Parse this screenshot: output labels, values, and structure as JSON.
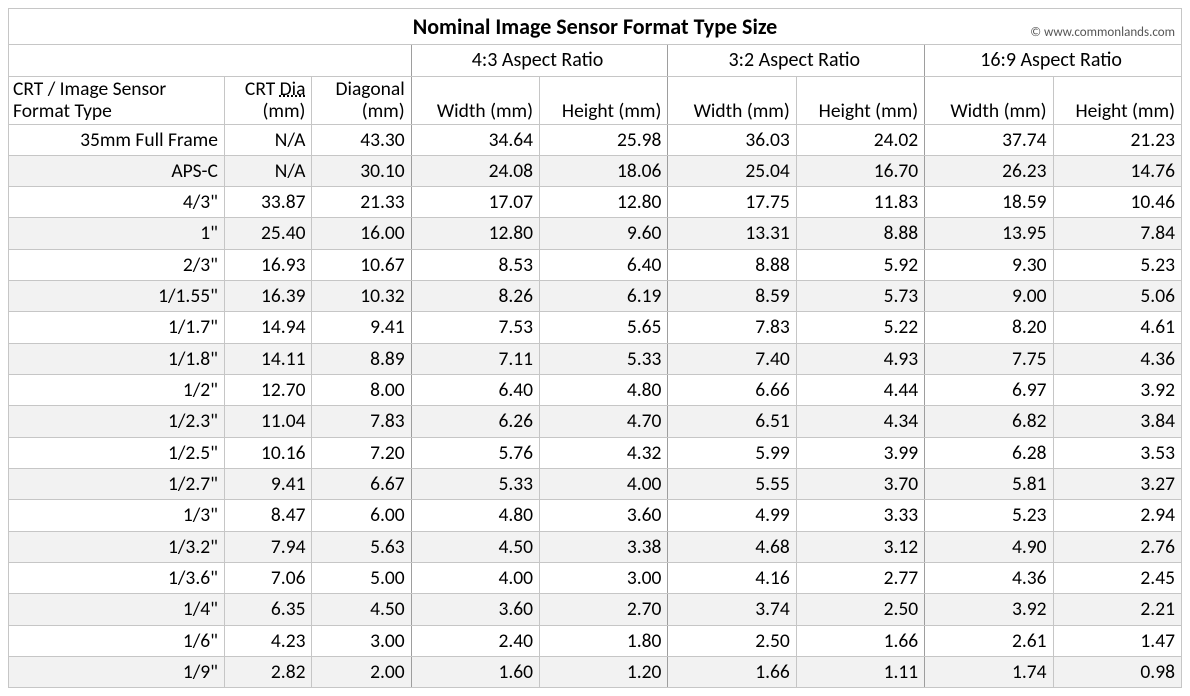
{
  "title": "Nominal Image Sensor Format Type Size",
  "credit": "© www.commonlands.com",
  "group_headers": {
    "r43": "4:3 Aspect Ratio",
    "r32": "3:2 Aspect Ratio",
    "r169": "16:9 Aspect Ratio"
  },
  "col_headers": {
    "type_l1": "CRT / Image Sensor",
    "type_l2": "Format Type",
    "crt_l1_a": "CRT ",
    "crt_l1_b": "Dia",
    "crt_l2": "(mm)",
    "diag_l1": "Diagonal",
    "diag_l2": "(mm)",
    "w": "Width (mm)",
    "h": "Height (mm)"
  },
  "rows": [
    {
      "type": "35mm Full Frame",
      "crt": "N/A",
      "diag": "43.30",
      "w43": "34.64",
      "h43": "25.98",
      "w32": "36.03",
      "h32": "24.02",
      "w169": "37.74",
      "h169": "21.23"
    },
    {
      "type": "APS-C",
      "crt": "N/A",
      "diag": "30.10",
      "w43": "24.08",
      "h43": "18.06",
      "w32": "25.04",
      "h32": "16.70",
      "w169": "26.23",
      "h169": "14.76"
    },
    {
      "type": "4/3\"",
      "crt": "33.87",
      "diag": "21.33",
      "w43": "17.07",
      "h43": "12.80",
      "w32": "17.75",
      "h32": "11.83",
      "w169": "18.59",
      "h169": "10.46"
    },
    {
      "type": "1\"",
      "crt": "25.40",
      "diag": "16.00",
      "w43": "12.80",
      "h43": "9.60",
      "w32": "13.31",
      "h32": "8.88",
      "w169": "13.95",
      "h169": "7.84"
    },
    {
      "type": "2/3\"",
      "crt": "16.93",
      "diag": "10.67",
      "w43": "8.53",
      "h43": "6.40",
      "w32": "8.88",
      "h32": "5.92",
      "w169": "9.30",
      "h169": "5.23"
    },
    {
      "type": "1/1.55\"",
      "crt": "16.39",
      "diag": "10.32",
      "w43": "8.26",
      "h43": "6.19",
      "w32": "8.59",
      "h32": "5.73",
      "w169": "9.00",
      "h169": "5.06"
    },
    {
      "type": "1/1.7\"",
      "crt": "14.94",
      "diag": "9.41",
      "w43": "7.53",
      "h43": "5.65",
      "w32": "7.83",
      "h32": "5.22",
      "w169": "8.20",
      "h169": "4.61"
    },
    {
      "type": "1/1.8\"",
      "crt": "14.11",
      "diag": "8.89",
      "w43": "7.11",
      "h43": "5.33",
      "w32": "7.40",
      "h32": "4.93",
      "w169": "7.75",
      "h169": "4.36"
    },
    {
      "type": "1/2\"",
      "crt": "12.70",
      "diag": "8.00",
      "w43": "6.40",
      "h43": "4.80",
      "w32": "6.66",
      "h32": "4.44",
      "w169": "6.97",
      "h169": "3.92"
    },
    {
      "type": "1/2.3\"",
      "crt": "11.04",
      "diag": "7.83",
      "w43": "6.26",
      "h43": "4.70",
      "w32": "6.51",
      "h32": "4.34",
      "w169": "6.82",
      "h169": "3.84"
    },
    {
      "type": "1/2.5\"",
      "crt": "10.16",
      "diag": "7.20",
      "w43": "5.76",
      "h43": "4.32",
      "w32": "5.99",
      "h32": "3.99",
      "w169": "6.28",
      "h169": "3.53"
    },
    {
      "type": "1/2.7\"",
      "crt": "9.41",
      "diag": "6.67",
      "w43": "5.33",
      "h43": "4.00",
      "w32": "5.55",
      "h32": "3.70",
      "w169": "5.81",
      "h169": "3.27"
    },
    {
      "type": "1/3\"",
      "crt": "8.47",
      "diag": "6.00",
      "w43": "4.80",
      "h43": "3.60",
      "w32": "4.99",
      "h32": "3.33",
      "w169": "5.23",
      "h169": "2.94"
    },
    {
      "type": "1/3.2\"",
      "crt": "7.94",
      "diag": "5.63",
      "w43": "4.50",
      "h43": "3.38",
      "w32": "4.68",
      "h32": "3.12",
      "w169": "4.90",
      "h169": "2.76"
    },
    {
      "type": "1/3.6\"",
      "crt": "7.06",
      "diag": "5.00",
      "w43": "4.00",
      "h43": "3.00",
      "w32": "4.16",
      "h32": "2.77",
      "w169": "4.36",
      "h169": "2.45"
    },
    {
      "type": "1/4\"",
      "crt": "6.35",
      "diag": "4.50",
      "w43": "3.60",
      "h43": "2.70",
      "w32": "3.74",
      "h32": "2.50",
      "w169": "3.92",
      "h169": "2.21"
    },
    {
      "type": "1/6\"",
      "crt": "4.23",
      "diag": "3.00",
      "w43": "2.40",
      "h43": "1.80",
      "w32": "2.50",
      "h32": "1.66",
      "w169": "2.61",
      "h169": "1.47"
    },
    {
      "type": "1/9\"",
      "crt": "2.82",
      "diag": "2.00",
      "w43": "1.60",
      "h43": "1.20",
      "w32": "1.66",
      "h32": "1.11",
      "w169": "1.74",
      "h169": "0.98"
    }
  ],
  "style": {
    "background_color": "#ffffff",
    "border_color": "#c6c6c6",
    "group_sep_color": "#9e9e9e",
    "alt_row_bg": "#f2f2f2",
    "text_color": "#000000",
    "credit_color": "#555555",
    "title_fontsize_pt": 16,
    "cell_fontsize_pt": 14,
    "credit_fontsize_pt": 10,
    "font_family": "Calibri"
  }
}
